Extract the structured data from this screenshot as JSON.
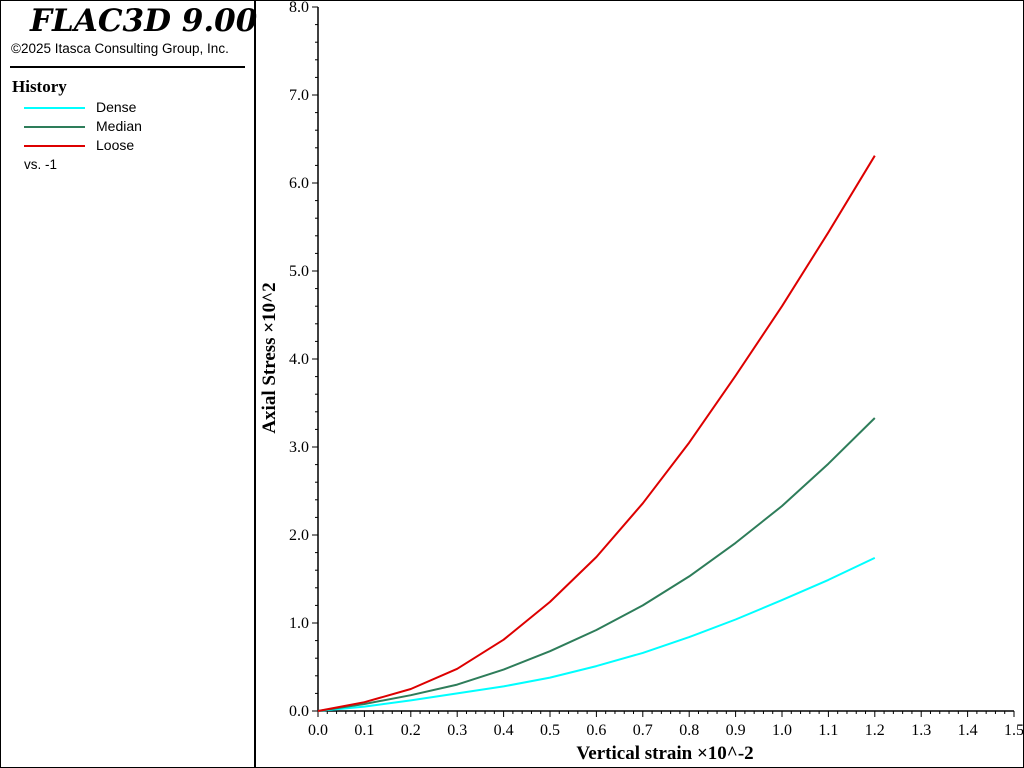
{
  "app": {
    "title": "FLAC3D 9.00",
    "copyright": "©2025 Itasca Consulting Group, Inc."
  },
  "legend": {
    "heading": "History",
    "vs_label": "vs. -1"
  },
  "colors": {
    "dense": "#00ffff",
    "median": "#2e7d5a",
    "loose": "#dd0000",
    "axis": "#000000"
  },
  "chart_data": {
    "type": "line",
    "xlabel": "Vertical strain ×10^-2",
    "ylabel": "Axial Stress ×10^2",
    "xlim": [
      0.0,
      1.5
    ],
    "ylim": [
      0.0,
      8.0
    ],
    "x_ticks": [
      "0.0",
      "0.1",
      "0.2",
      "0.3",
      "0.4",
      "0.5",
      "0.6",
      "0.7",
      "0.8",
      "0.9",
      "1.0",
      "1.1",
      "1.2",
      "1.3",
      "1.4",
      "1.5"
    ],
    "y_ticks": [
      "0.0",
      "1.0",
      "2.0",
      "3.0",
      "4.0",
      "5.0",
      "6.0",
      "7.0",
      "8.0"
    ],
    "x": [
      0.0,
      0.1,
      0.2,
      0.3,
      0.4,
      0.5,
      0.6,
      0.7,
      0.8,
      0.9,
      1.0,
      1.1,
      1.2
    ],
    "series": [
      {
        "name": "Dense",
        "color_key": "dense",
        "values": [
          0.0,
          0.05,
          0.12,
          0.2,
          0.28,
          0.38,
          0.51,
          0.66,
          0.84,
          1.04,
          1.26,
          1.49,
          1.74
        ]
      },
      {
        "name": "Median",
        "color_key": "median",
        "values": [
          0.0,
          0.08,
          0.18,
          0.3,
          0.47,
          0.68,
          0.92,
          1.2,
          1.53,
          1.91,
          2.33,
          2.81,
          3.33
        ]
      },
      {
        "name": "Loose",
        "color_key": "loose",
        "values": [
          0.0,
          0.1,
          0.25,
          0.48,
          0.81,
          1.24,
          1.75,
          2.36,
          3.05,
          3.81,
          4.6,
          5.44,
          6.31
        ]
      }
    ]
  }
}
